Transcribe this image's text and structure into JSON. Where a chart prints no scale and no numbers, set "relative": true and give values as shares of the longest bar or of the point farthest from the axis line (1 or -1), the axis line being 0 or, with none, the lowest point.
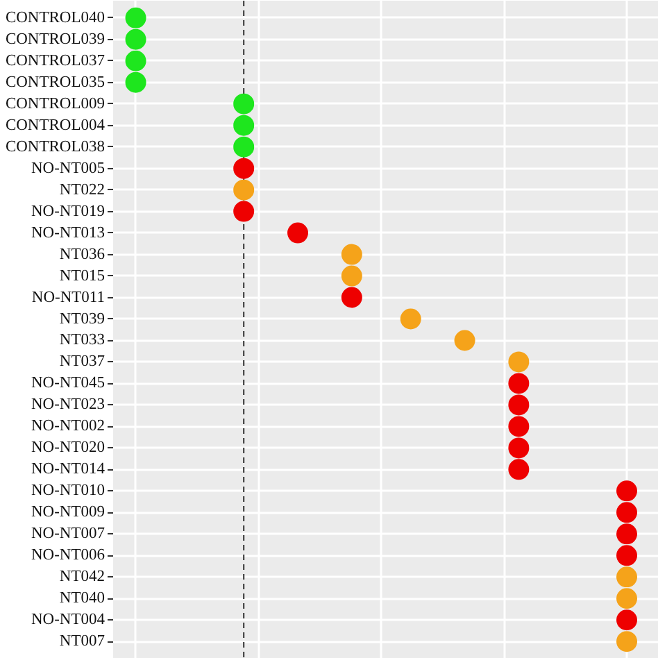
{
  "chart_data": {
    "type": "scatter",
    "relative": true,
    "orientation": "horizontal",
    "marker": "circle",
    "grid": true,
    "categories": [
      "CONTROL040",
      "CONTROL039",
      "CONTROL037",
      "CONTROL035",
      "CONTROL009",
      "CONTROL004",
      "CONTROL038",
      "NO-NT005",
      "NT022",
      "NO-NT019",
      "NO-NT013",
      "NT036",
      "NT015",
      "NO-NT011",
      "NT039",
      "NT033",
      "NT037",
      "NO-NT045",
      "NO-NT023",
      "NO-NT002",
      "NO-NT020",
      "NO-NT014",
      "NO-NT010",
      "NO-NT009",
      "NO-NT007",
      "NO-NT006",
      "NT042",
      "NT040",
      "NO-NT004",
      "NT007"
    ],
    "values": [
      0,
      0,
      0,
      0,
      0.22,
      0.22,
      0.22,
      0.22,
      0.22,
      0.22,
      0.33,
      0.44,
      0.44,
      0.44,
      0.56,
      0.67,
      0.78,
      0.78,
      0.78,
      0.78,
      0.78,
      0.78,
      1,
      1,
      1,
      1,
      1,
      1,
      1,
      1
    ],
    "colors": [
      "#1ee61e",
      "#1ee61e",
      "#1ee61e",
      "#1ee61e",
      "#1ee61e",
      "#1ee61e",
      "#1ee61e",
      "#ee0000",
      "#f5a31a",
      "#ee0000",
      "#ee0000",
      "#f5a31a",
      "#f5a31a",
      "#ee0000",
      "#f5a31a",
      "#f5a31a",
      "#f5a31a",
      "#ee0000",
      "#ee0000",
      "#ee0000",
      "#ee0000",
      "#ee0000",
      "#ee0000",
      "#ee0000",
      "#ee0000",
      "#ee0000",
      "#f5a31a",
      "#f5a31a",
      "#ee0000",
      "#f5a31a"
    ],
    "ref_lines": [
      {
        "axis": "x",
        "value": 0.22,
        "line_style": "dashed",
        "color": "#333333"
      }
    ]
  }
}
